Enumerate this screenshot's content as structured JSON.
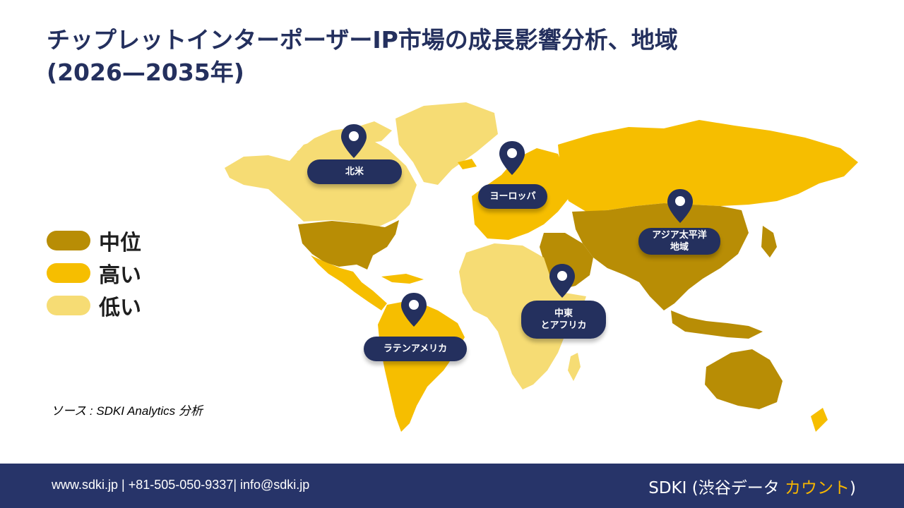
{
  "title": {
    "line1": "チップレットインターポーザーIP市場の成長影響分析、地域",
    "line2": "(2026—2035年)"
  },
  "colors": {
    "medium": "#b88d05",
    "high": "#f6be00",
    "low": "#f6dc74",
    "navy": "#24305e"
  },
  "legend": [
    {
      "key": "medium",
      "label": "中位"
    },
    {
      "key": "high",
      "label": "高い"
    },
    {
      "key": "low",
      "label": "低い"
    }
  ],
  "regions": {
    "north_america": "北米",
    "europe": "ヨーロッパ",
    "asia_pacific_line1": "アジア太平洋",
    "asia_pacific_line2": "地域",
    "middle_east_line1": "中東",
    "middle_east_line2": "とアフリカ",
    "latin_america": "ラテンアメリカ"
  },
  "source": "ソース : SDKI Analytics 分析",
  "footer": {
    "contact": "www.sdki.jp | +81-505-050-9337| info@sdki.jp",
    "brand_prefix": "SDKI (渋谷データ ",
    "brand_accent": "カウント",
    "brand_suffix": ")"
  }
}
